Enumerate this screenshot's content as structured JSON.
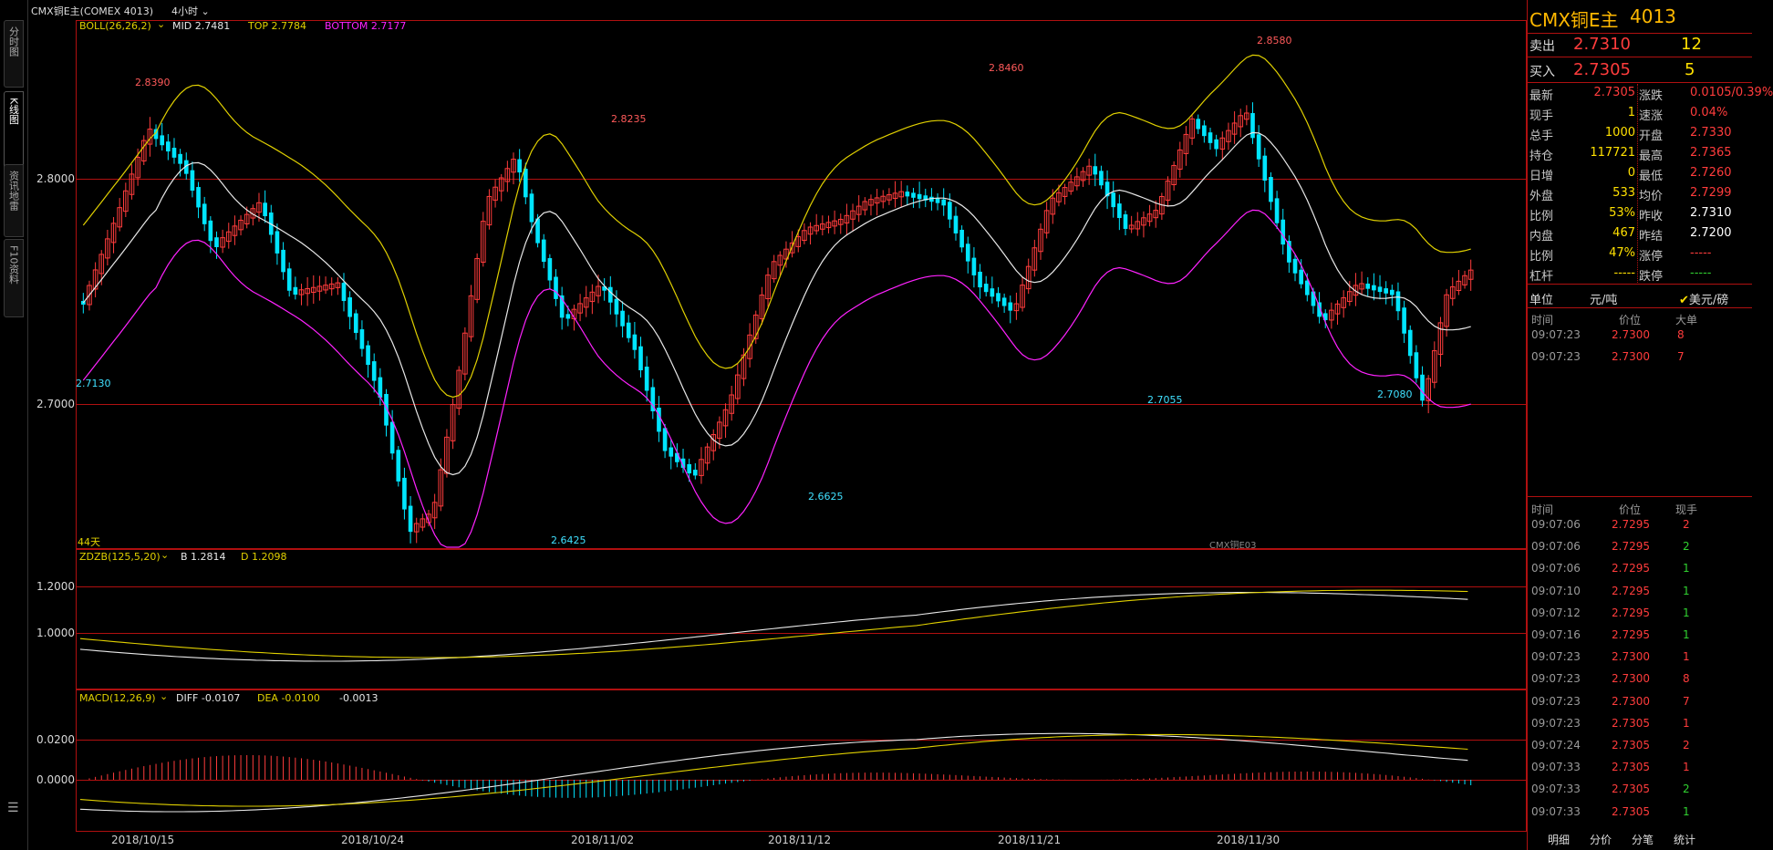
{
  "topbar": {
    "symbol_label": "CMX铜E主(COMEX 4013)",
    "period_label": "4小时"
  },
  "left_tabs": [
    "分时图",
    "K线图",
    "资讯地雷",
    "F10资料"
  ],
  "main_panel": {
    "boll_name": "BOLL(26,26,2)",
    "mid_label": "MID 2.7481",
    "top_label": "TOP 2.7784",
    "bottom_label": "BOTTOM 2.7177",
    "y_ticks": [
      "2.8000",
      "2.7000"
    ],
    "annotations": [
      "2.8390",
      "2.8235",
      "2.8460",
      "2.8580",
      "2.7130",
      "2.6425",
      "2.6625",
      "2.7055",
      "2.7080"
    ],
    "days_label": "44天",
    "watermark": "CMX铜E03"
  },
  "zdzb_panel": {
    "name": "ZDZB(125,5,20)",
    "b_label": "B 1.2814",
    "d_label": "D 1.2098",
    "y_ticks": [
      "1.2000",
      "1.0000"
    ]
  },
  "macd_panel": {
    "name": "MACD(12,26,9)",
    "diff_label": "DIFF -0.0107",
    "dea_label": "DEA -0.0100",
    "macd_value": "-0.0013",
    "y_ticks": [
      "0.0200",
      "0.0000"
    ]
  },
  "x_axis_dates": [
    "2018/10/15",
    "2018/10/24",
    "2018/11/02",
    "2018/11/12",
    "2018/11/21",
    "2018/11/30"
  ],
  "colors": {
    "up": "#ff3c3c",
    "down": "#00e5ff",
    "mid": "#e8e8e8",
    "top": "#e0d000",
    "bottom": "#ff22ff",
    "grid": "#b01010"
  },
  "quote": {
    "title": "CMX铜E主",
    "code": "4013",
    "sell_label": "卖出",
    "sell_price": "2.7310",
    "sell_vol": "12",
    "buy_label": "买入",
    "buy_price": "2.7305",
    "buy_vol": "5",
    "stats": [
      {
        "l": "最新",
        "v": "2.7305",
        "c": "red",
        "l2": "涨跌",
        "v2": "0.0105/0.39%",
        "c2": "red"
      },
      {
        "l": "现手",
        "v": "1",
        "c": "yellow",
        "l2": "速涨",
        "v2": "0.04%",
        "c2": "red"
      },
      {
        "l": "总手",
        "v": "1000",
        "c": "yellow",
        "l2": "开盘",
        "v2": "2.7330",
        "c2": "red"
      },
      {
        "l": "持仓",
        "v": "117721",
        "c": "yellow",
        "l2": "最高",
        "v2": "2.7365",
        "c2": "red"
      },
      {
        "l": "日增",
        "v": "0",
        "c": "yellow",
        "l2": "最低",
        "v2": "2.7260",
        "c2": "red"
      },
      {
        "l": "外盘",
        "v": "533",
        "c": "yellow",
        "l2": "均价",
        "v2": "2.7299",
        "c2": "red"
      },
      {
        "l": "比例",
        "v": "53%",
        "c": "yellow",
        "l2": "昨收",
        "v2": "2.7310",
        "c2": "white"
      },
      {
        "l": "内盘",
        "v": "467",
        "c": "yellow",
        "l2": "昨结",
        "v2": "2.7200",
        "c2": "white"
      },
      {
        "l": "比例",
        "v": "47%",
        "c": "yellow",
        "l2": "涨停",
        "v2": "-----",
        "c2": "red"
      },
      {
        "l": "杠杆",
        "v": "-----",
        "c": "yellow",
        "l2": "跌停",
        "v2": "-----",
        "c2": "green"
      }
    ],
    "unit_label": "单位",
    "unit_value": "元/吨",
    "currency_label": "美元/磅"
  },
  "big_orders": {
    "headers": [
      "时间",
      "价位",
      "大单"
    ],
    "rows": [
      {
        "time": "09:07:23",
        "price": "2.7300",
        "qty": "8"
      },
      {
        "time": "09:07:23",
        "price": "2.7300",
        "qty": "7"
      }
    ]
  },
  "ticks": {
    "headers": [
      "时间",
      "价位",
      "现手"
    ],
    "rows": [
      {
        "time": "09:07:06",
        "price": "2.7295",
        "qty": "2",
        "qc": "red"
      },
      {
        "time": "09:07:06",
        "price": "2.7295",
        "qty": "2",
        "qc": "green"
      },
      {
        "time": "09:07:06",
        "price": "2.7295",
        "qty": "1",
        "qc": "green"
      },
      {
        "time": "09:07:10",
        "price": "2.7295",
        "qty": "1",
        "qc": "green"
      },
      {
        "time": "09:07:12",
        "price": "2.7295",
        "qty": "1",
        "qc": "green"
      },
      {
        "time": "09:07:16",
        "price": "2.7295",
        "qty": "1",
        "qc": "green"
      },
      {
        "time": "09:07:23",
        "price": "2.7300",
        "qty": "1",
        "qc": "red"
      },
      {
        "time": "09:07:23",
        "price": "2.7300",
        "qty": "8",
        "qc": "red"
      },
      {
        "time": "09:07:23",
        "price": "2.7300",
        "qty": "7",
        "qc": "red"
      },
      {
        "time": "09:07:23",
        "price": "2.7305",
        "qty": "1",
        "qc": "red"
      },
      {
        "time": "09:07:24",
        "price": "2.7305",
        "qty": "2",
        "qc": "red"
      },
      {
        "time": "09:07:33",
        "price": "2.7305",
        "qty": "1",
        "qc": "red"
      },
      {
        "time": "09:07:33",
        "price": "2.7305",
        "qty": "2",
        "qc": "green"
      },
      {
        "time": "09:07:33",
        "price": "2.7305",
        "qty": "1",
        "qc": "green"
      }
    ]
  },
  "bottom_tabs": [
    "明细",
    "分价",
    "分笔",
    "统计"
  ]
}
